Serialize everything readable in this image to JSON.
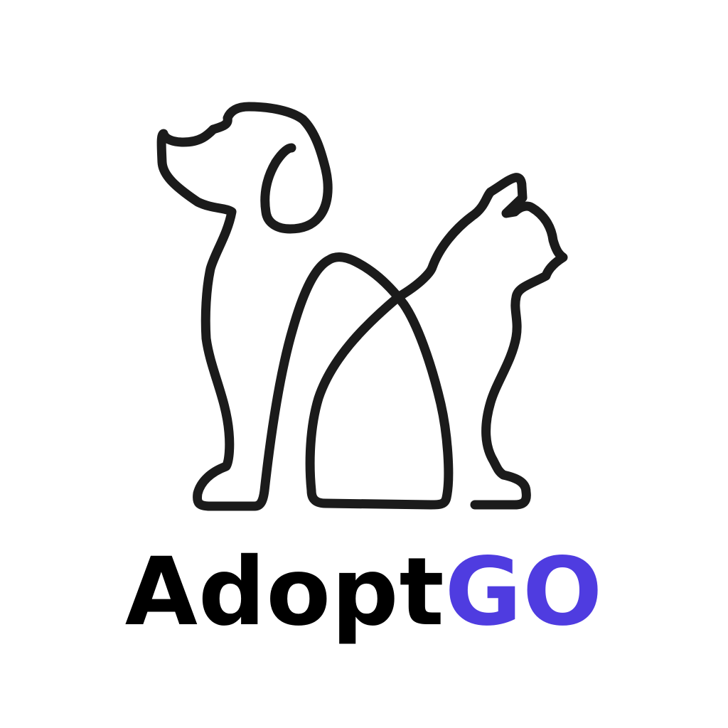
{
  "logo": {
    "icon": "dog-and-cat-outline-icon",
    "wordmark": {
      "part1": "Adopt",
      "part2": "GO"
    },
    "colors": {
      "outline": "#1b1b1b",
      "part1": "#000000",
      "part2": "#4f3ce0",
      "background": "#ffffff"
    }
  }
}
